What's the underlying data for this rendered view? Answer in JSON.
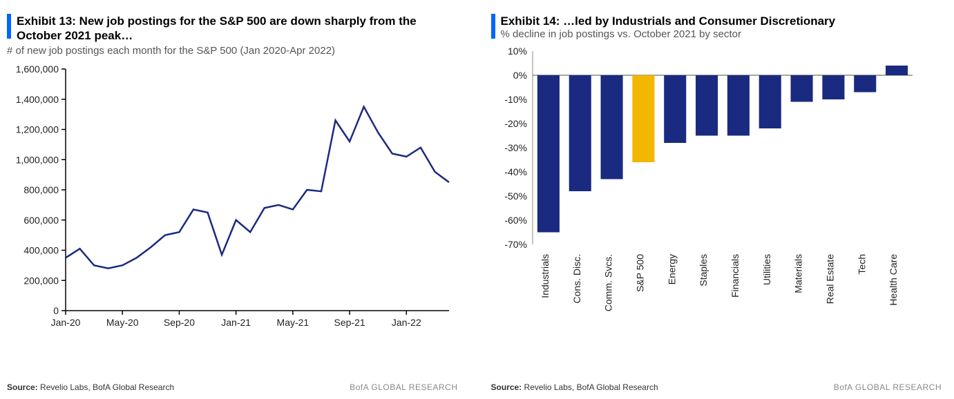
{
  "left": {
    "title": "Exhibit 13: New job postings for the S&P 500 are down sharply from the October 2021 peak…",
    "subtitle": "# of new job postings each month for the S&P 500 (Jan 2020-Apr 2022)",
    "source_label": "Source:",
    "source_text": "Revelio Labs, BofA Global Research",
    "brand": "BofA GLOBAL RESEARCH",
    "chart": {
      "type": "line",
      "accent_color": "#0066ff",
      "line_color": "#1a2a80",
      "line_width": 2.5,
      "background_color": "#ffffff",
      "axis_color": "#000000",
      "tick_color": "#000000",
      "tick_font_size": 14,
      "ylim": [
        0,
        1600000
      ],
      "ytick_step": 200000,
      "ytick_labels": [
        "0",
        "200,000",
        "400,000",
        "600,000",
        "800,000",
        "1,000,000",
        "1,200,000",
        "1,400,000",
        "1,600,000"
      ],
      "x_categories": [
        "Jan-20",
        "Feb-20",
        "Mar-20",
        "Apr-20",
        "May-20",
        "Jun-20",
        "Jul-20",
        "Aug-20",
        "Sep-20",
        "Oct-20",
        "Nov-20",
        "Dec-20",
        "Jan-21",
        "Feb-21",
        "Mar-21",
        "Apr-21",
        "May-21",
        "Jun-21",
        "Jul-21",
        "Aug-21",
        "Sep-21",
        "Oct-21",
        "Nov-21",
        "Dec-21",
        "Jan-22",
        "Feb-22",
        "Mar-22",
        "Apr-22"
      ],
      "x_show_labels": [
        "Jan-20",
        "May-20",
        "Sep-20",
        "Jan-21",
        "May-21",
        "Sep-21",
        "Jan-22"
      ],
      "values": [
        350000,
        410000,
        300000,
        280000,
        300000,
        350000,
        420000,
        500000,
        520000,
        670000,
        650000,
        370000,
        600000,
        520000,
        680000,
        700000,
        670000,
        800000,
        790000,
        1260000,
        1120000,
        1350000,
        1180000,
        1040000,
        1020000,
        1080000,
        920000,
        850000
      ]
    }
  },
  "right": {
    "title": "Exhibit 14: …led by Industrials and Consumer Discretionary",
    "subtitle": "% decline in job postings vs. October 2021 by sector",
    "source_label": "Source:",
    "source_text": "Revelio Labs, BofA Global Research",
    "brand": "BofA GLOBAL RESEARCH",
    "chart": {
      "type": "bar",
      "accent_color": "#0066ff",
      "bar_color_default": "#1a2a80",
      "bar_color_highlight": "#f2b700",
      "background_color": "#ffffff",
      "axis_color": "#888888",
      "zero_line_color": "#888888",
      "tick_font_size": 14,
      "ylim": [
        -70,
        10
      ],
      "ytick_step": 10,
      "ytick_labels": [
        "10%",
        "0%",
        "-10%",
        "-20%",
        "-30%",
        "-40%",
        "-50%",
        "-60%",
        "-70%"
      ],
      "highlight_index": 3,
      "bar_width_ratio": 0.7,
      "categories": [
        "Industrials",
        "Cons. Disc.",
        "Comm. Svcs.",
        "S&P 500",
        "Energy",
        "Staples",
        "Financials",
        "Utilities",
        "Materials",
        "Real Estate",
        "Tech",
        "Health Care"
      ],
      "values": [
        -65,
        -48,
        -43,
        -36,
        -28,
        -25,
        -25,
        -22,
        -11,
        -10,
        -7,
        4
      ]
    }
  }
}
